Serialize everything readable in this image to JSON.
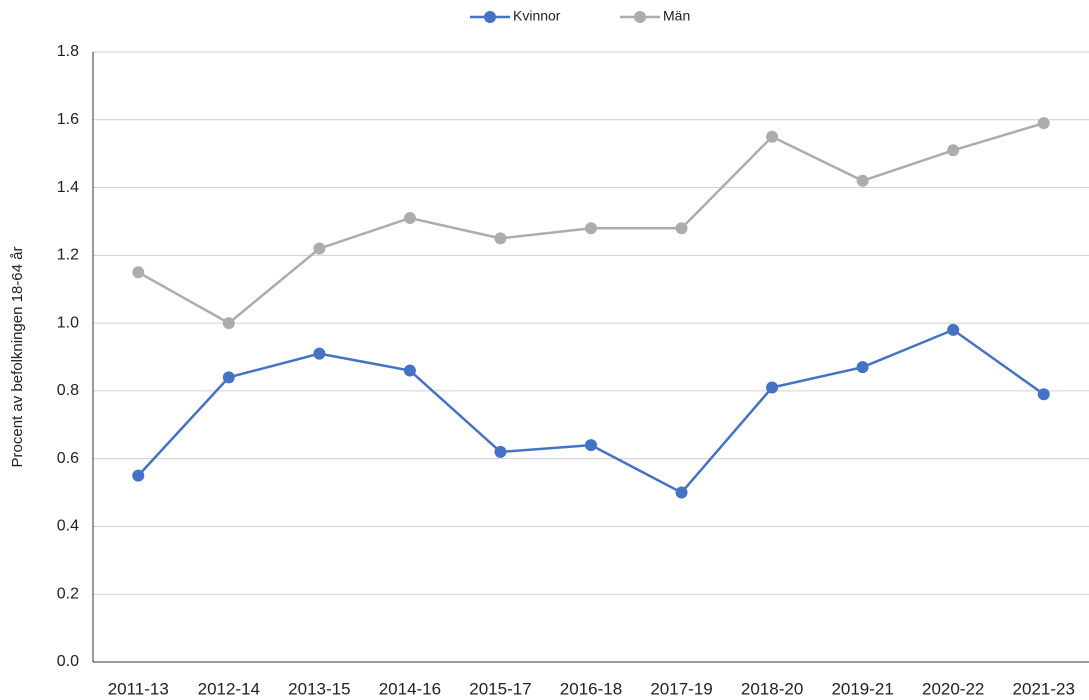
{
  "chart_data": {
    "type": "line",
    "y_label": "Procent av befolkningen 18-64 år",
    "categories": [
      "2011-13",
      "2012-14",
      "2013-15",
      "2014-16",
      "2015-17",
      "2016-18",
      "2017-19",
      "2018-20",
      "2019-21",
      "2020-22",
      "2021-23"
    ],
    "series": [
      {
        "name": "Kvinnor",
        "color": "#4472c4",
        "values": [
          0.55,
          0.84,
          0.91,
          0.86,
          0.62,
          0.64,
          0.5,
          0.81,
          0.87,
          0.98,
          0.79
        ]
      },
      {
        "name": "Män",
        "color": "#acacac",
        "values": [
          1.15,
          1.0,
          1.22,
          1.31,
          1.25,
          1.28,
          1.28,
          1.55,
          1.42,
          1.51,
          1.59
        ]
      }
    ],
    "ylim": [
      0,
      1.8
    ],
    "yticks": [
      {
        "value": 0,
        "label": "0.0"
      },
      0.2,
      0.4,
      0.6,
      0.8,
      {
        "value": 1,
        "label": "1.0"
      },
      1.2,
      1.4,
      1.6,
      1.8
    ],
    "grid": true,
    "legend": "top"
  }
}
